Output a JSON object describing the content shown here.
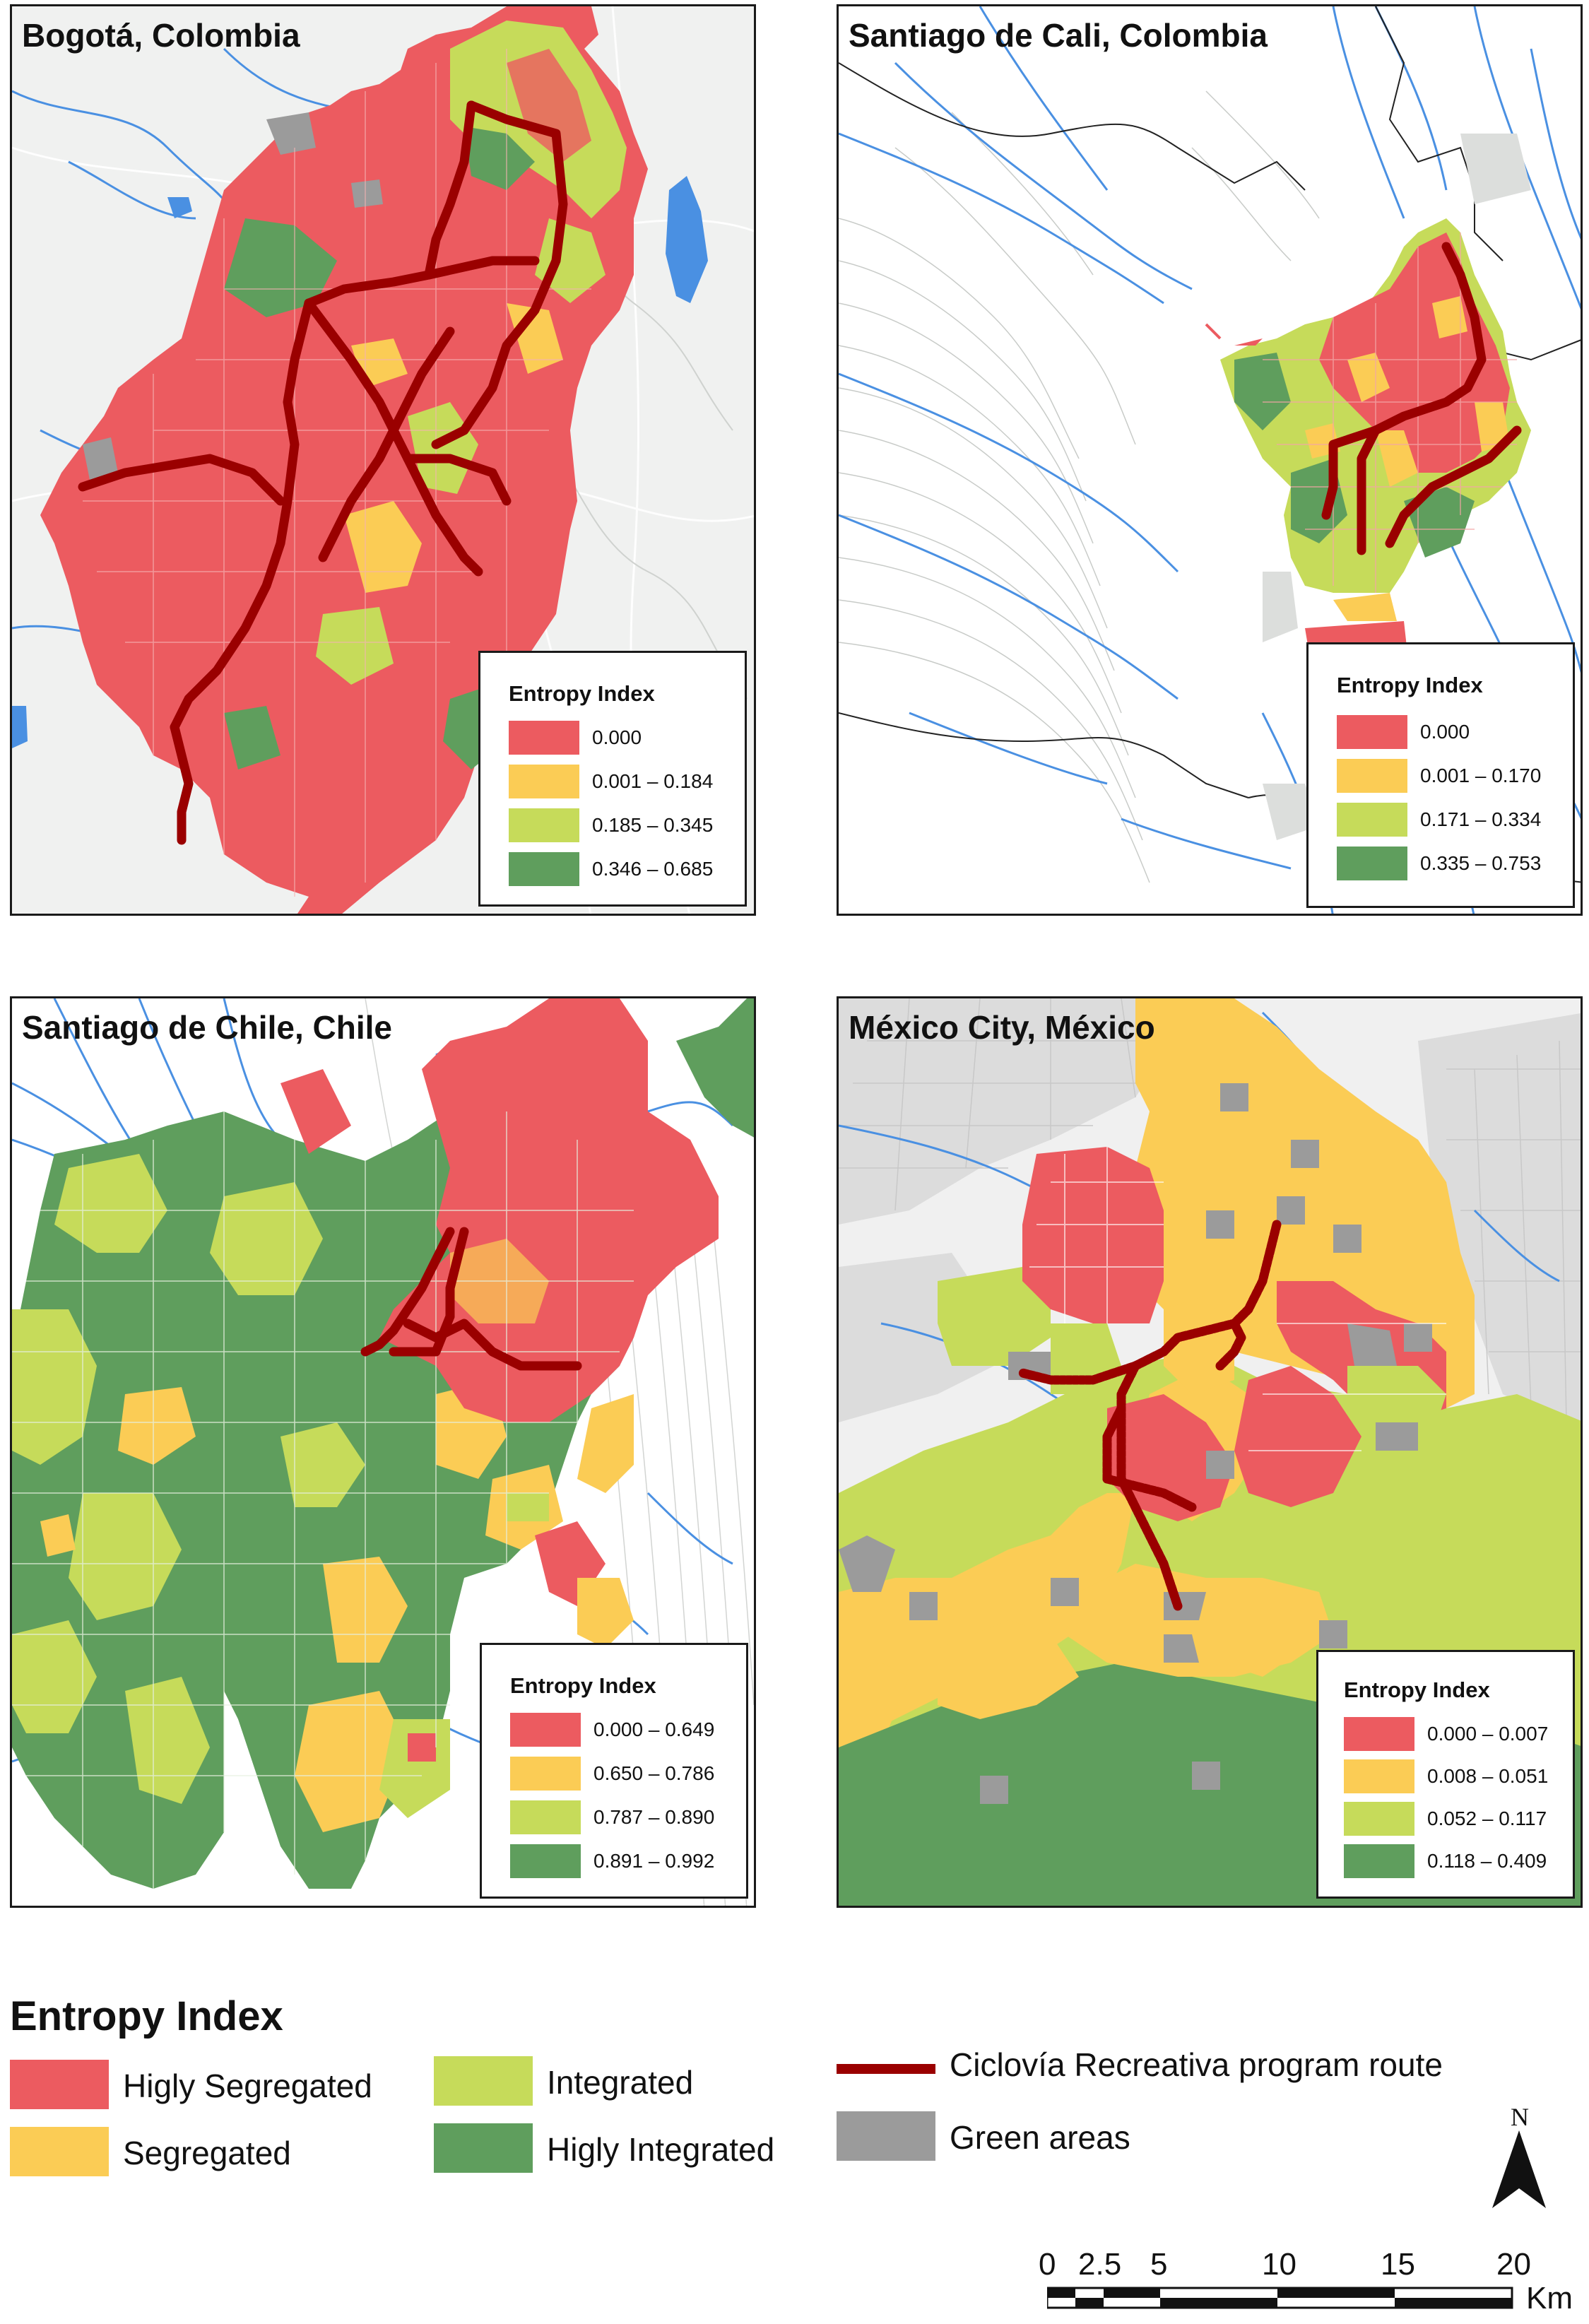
{
  "colors": {
    "higly_segregated": "#ec5b60",
    "segregated": "#fbcc55",
    "integrated": "#c6db5a",
    "higly_integrated": "#5f9e5d",
    "route": "#9a0000",
    "green_areas": "#9b9b9b",
    "water": "#4a90e2"
  },
  "panels": [
    {
      "title": "Bogotá, Colombia",
      "legend_title": "Entropy Index",
      "ranges": [
        "0.000",
        "0.001 – 0.184",
        "0.185 – 0.345",
        "0.346 – 0.685"
      ]
    },
    {
      "title": "Santiago de Cali, Colombia",
      "legend_title": "Entropy Index",
      "ranges": [
        "0.000",
        "0.001 – 0.170",
        "0.171 – 0.334",
        "0.335 – 0.753"
      ]
    },
    {
      "title": "Santiago de Chile, Chile",
      "legend_title": "Entropy Index",
      "ranges": [
        "0.000 – 0.649",
        "0.650 – 0.786",
        "0.787 – 0.890",
        "0.891 – 0.992"
      ]
    },
    {
      "title": "México City, México",
      "legend_title": "Entropy Index",
      "ranges": [
        "0.000 – 0.007",
        "0.008 – 0.051",
        "0.052 – 0.117",
        "0.118 – 0.409"
      ]
    }
  ],
  "main_legend": {
    "title": "Entropy Index",
    "items": [
      {
        "label": "Higly Segregated",
        "color": "#ec5b60"
      },
      {
        "label": "Segregated",
        "color": "#fbcc55"
      },
      {
        "label": "Integrated",
        "color": "#c6db5a"
      },
      {
        "label": "Higly Integrated",
        "color": "#5f9e5d"
      }
    ],
    "route_label": "Ciclovía Recreativa program route",
    "green_label": "Green areas"
  },
  "north_label": "N",
  "scale": {
    "ticks": [
      "0",
      "2.5",
      "5",
      "10",
      "15",
      "20"
    ],
    "unit": "Km"
  }
}
